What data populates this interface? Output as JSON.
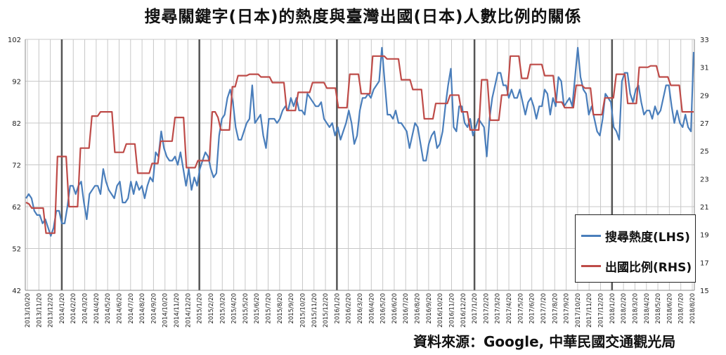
{
  "title": "搜尋關鍵字(日本)的熱度與臺灣出國(日本)人數比例的關係",
  "source_note": "資料來源：Google, 中華民國交通觀光局",
  "legend": {
    "lhs_label": "搜尋熱度(LHS)",
    "rhs_label": "出國比例(RHS)"
  },
  "chart_data": {
    "type": "line",
    "legend_position": "bottom-right",
    "grid": true,
    "colors": {
      "lhs": "#4a7ebb",
      "rhs": "#be4b48",
      "grid": "#c8c8c8",
      "vline": "#555555"
    },
    "y_left": {
      "ticks": [
        42,
        52,
        62,
        72,
        82,
        92,
        102
      ],
      "range": [
        42,
        102
      ]
    },
    "y_right": {
      "ticks": [
        15,
        17,
        19,
        21,
        23,
        25,
        27,
        29,
        31,
        33
      ],
      "range": [
        15,
        33
      ]
    },
    "x_labels": [
      "2013/10/20",
      "2013/11/20",
      "2013/12/20",
      "2014/1/20",
      "2014/2/20",
      "2014/3/20",
      "2014/4/20",
      "2014/5/20",
      "2014/6/20",
      "2014/7/20",
      "2014/8/20",
      "2014/9/20",
      "2014/10/20",
      "2014/11/20",
      "2014/12/20",
      "2015/1/20",
      "2015/2/20",
      "2015/3/20",
      "2015/4/20",
      "2015/5/20",
      "2015/6/20",
      "2015/7/20",
      "2015/8/20",
      "2015/9/20",
      "2015/10/20",
      "2015/11/20",
      "2015/12/20",
      "2016/1/20",
      "2016/2/20",
      "2016/3/20",
      "2016/4/20",
      "2016/5/20",
      "2016/6/20",
      "2016/7/20",
      "2016/8/20",
      "2016/9/20",
      "2016/10/20",
      "2016/11/20",
      "2016/12/20",
      "2017/1/20",
      "2017/2/20",
      "2017/3/20",
      "2017/4/20",
      "2017/5/20",
      "2017/6/20",
      "2017/7/20",
      "2017/8/20",
      "2017/9/20",
      "2017/10/20",
      "2017/11/20",
      "2017/12/20",
      "2018/1/20",
      "2018/2/20",
      "2018/3/20",
      "2018/4/20",
      "2018/5/20",
      "2018/6/20",
      "2018/7/20",
      "2018/8/20"
    ],
    "year_marker_labels": [
      "2014/1/20",
      "2015/1/20",
      "2016/1/20",
      "2017/1/20",
      "2018/1/20"
    ],
    "series": [
      {
        "name": "搜尋熱度(LHS)",
        "axis": "left",
        "values": [
          64,
          65,
          64,
          61,
          60,
          60,
          58,
          59,
          57,
          55,
          57,
          61,
          61,
          58,
          58,
          62,
          67,
          67,
          65,
          67,
          68,
          63,
          59,
          65,
          66,
          67,
          67,
          65,
          71,
          68,
          66,
          65,
          64,
          67,
          68,
          63,
          63,
          64,
          68,
          65,
          68,
          66,
          67,
          64,
          67,
          69,
          68,
          75,
          74,
          80,
          76,
          74,
          73,
          73,
          74,
          72,
          75,
          71,
          67,
          71,
          66,
          69,
          67,
          71,
          73,
          75,
          74,
          71,
          69,
          70,
          79,
          83,
          84,
          88,
          90,
          87,
          81,
          78,
          78,
          80,
          82,
          83,
          91,
          82,
          83,
          84,
          79,
          76,
          83,
          83,
          83,
          82,
          83,
          85,
          86,
          85,
          88,
          86,
          88,
          85,
          85,
          84,
          89,
          88,
          87,
          86,
          86,
          87,
          83,
          82,
          81,
          82,
          79,
          81,
          78,
          80,
          82,
          85,
          82,
          77,
          79,
          85,
          88,
          88,
          89,
          88,
          90,
          91,
          92,
          100,
          92,
          84,
          84,
          83,
          85,
          82,
          82,
          81,
          80,
          76,
          79,
          82,
          81,
          77,
          73,
          73,
          77,
          79,
          80,
          76,
          77,
          80,
          86,
          91,
          95,
          81,
          80,
          86,
          86,
          82,
          81,
          83,
          79,
          81,
          83,
          82,
          81,
          74,
          83,
          88,
          91,
          94,
          94,
          91,
          91,
          88,
          90,
          88,
          88,
          90,
          87,
          84,
          87,
          88,
          86,
          83,
          86,
          86,
          90,
          89,
          84,
          88,
          86,
          93,
          92,
          86,
          87,
          88,
          86,
          93,
          100,
          93,
          90,
          89,
          84,
          86,
          83,
          80,
          79,
          83,
          89,
          88,
          87,
          81,
          80,
          78,
          92,
          94,
          94,
          89,
          87,
          90,
          91,
          87,
          84,
          85,
          85,
          83,
          86,
          84,
          85,
          88,
          91,
          91,
          86,
          82,
          85,
          82,
          81,
          84,
          81,
          80,
          99
        ]
      },
      {
        "name": "出國比例(RHS)",
        "axis": "right",
        "values": [
          21.3,
          21.2,
          20.9,
          20.9,
          20.9,
          20.9,
          20.9,
          19.1,
          19.1,
          19.1,
          19.1,
          24.6,
          24.6,
          24.6,
          24.6,
          21.0,
          21.0,
          21.0,
          21.0,
          25.2,
          25.2,
          25.2,
          25.2,
          27.5,
          27.5,
          27.5,
          27.8,
          27.8,
          27.8,
          27.8,
          27.8,
          24.9,
          24.9,
          24.9,
          24.9,
          25.5,
          25.5,
          25.5,
          25.5,
          23.4,
          23.4,
          23.4,
          23.4,
          23.4,
          24.1,
          24.1,
          24.1,
          25.7,
          25.7,
          25.7,
          25.7,
          25.7,
          27.4,
          27.4,
          27.4,
          27.4,
          23.8,
          23.8,
          23.8,
          23.8,
          24.3,
          24.3,
          24.3,
          24.3,
          24.3,
          27.8,
          27.8,
          27.4,
          26.5,
          26.5,
          26.5,
          26.5,
          29.6,
          29.6,
          30.4,
          30.4,
          30.4,
          30.4,
          30.5,
          30.5,
          30.5,
          30.5,
          30.3,
          30.3,
          30.3,
          30.3,
          29.9,
          29.9,
          29.9,
          29.9,
          29.9,
          27.9,
          27.9,
          27.9,
          27.9,
          29.2,
          29.2,
          29.2,
          29.2,
          29.2,
          29.9,
          29.9,
          29.9,
          29.9,
          29.9,
          29.5,
          29.5,
          29.5,
          29.5,
          28.1,
          28.1,
          28.1,
          28.1,
          30.5,
          30.5,
          30.5,
          30.5,
          29.1,
          29.1,
          29.1,
          29.1,
          31.8,
          31.8,
          31.8,
          31.8,
          31.8,
          31.6,
          31.6,
          31.6,
          31.6,
          31.6,
          30.1,
          30.1,
          30.1,
          30.1,
          29.4,
          29.4,
          29.4,
          29.4,
          27.3,
          27.3,
          27.3,
          27.3,
          28.4,
          28.4,
          28.4,
          28.4,
          28.4,
          29.0,
          29.0,
          29.0,
          29.0,
          27.8,
          27.8,
          27.8,
          26.5,
          26.5,
          26.5,
          26.5,
          30.1,
          30.1,
          30.1,
          27.2,
          27.2,
          27.2,
          27.2,
          29.0,
          29.0,
          29.0,
          31.8,
          31.8,
          31.8,
          31.8,
          30.2,
          30.2,
          30.2,
          31.2,
          31.2,
          31.2,
          31.2,
          31.2,
          30.4,
          30.4,
          30.4,
          30.4,
          28.5,
          28.5,
          28.5,
          28.1,
          28.1,
          28.1,
          28.1,
          29.7,
          29.7,
          29.7,
          29.5,
          29.5,
          29.5,
          27.6,
          27.6,
          27.6,
          27.6,
          28.8,
          28.8,
          28.8,
          28.8,
          30.5,
          30.5,
          30.5,
          30.5,
          28.4,
          28.4,
          28.4,
          28.4,
          31.0,
          31.0,
          31.0,
          31.0,
          31.1,
          31.1,
          31.1,
          30.3,
          30.3,
          30.3,
          30.3,
          29.7,
          29.7,
          29.7,
          29.7,
          27.8,
          27.8,
          27.8,
          27.8,
          27.8
        ]
      }
    ]
  }
}
